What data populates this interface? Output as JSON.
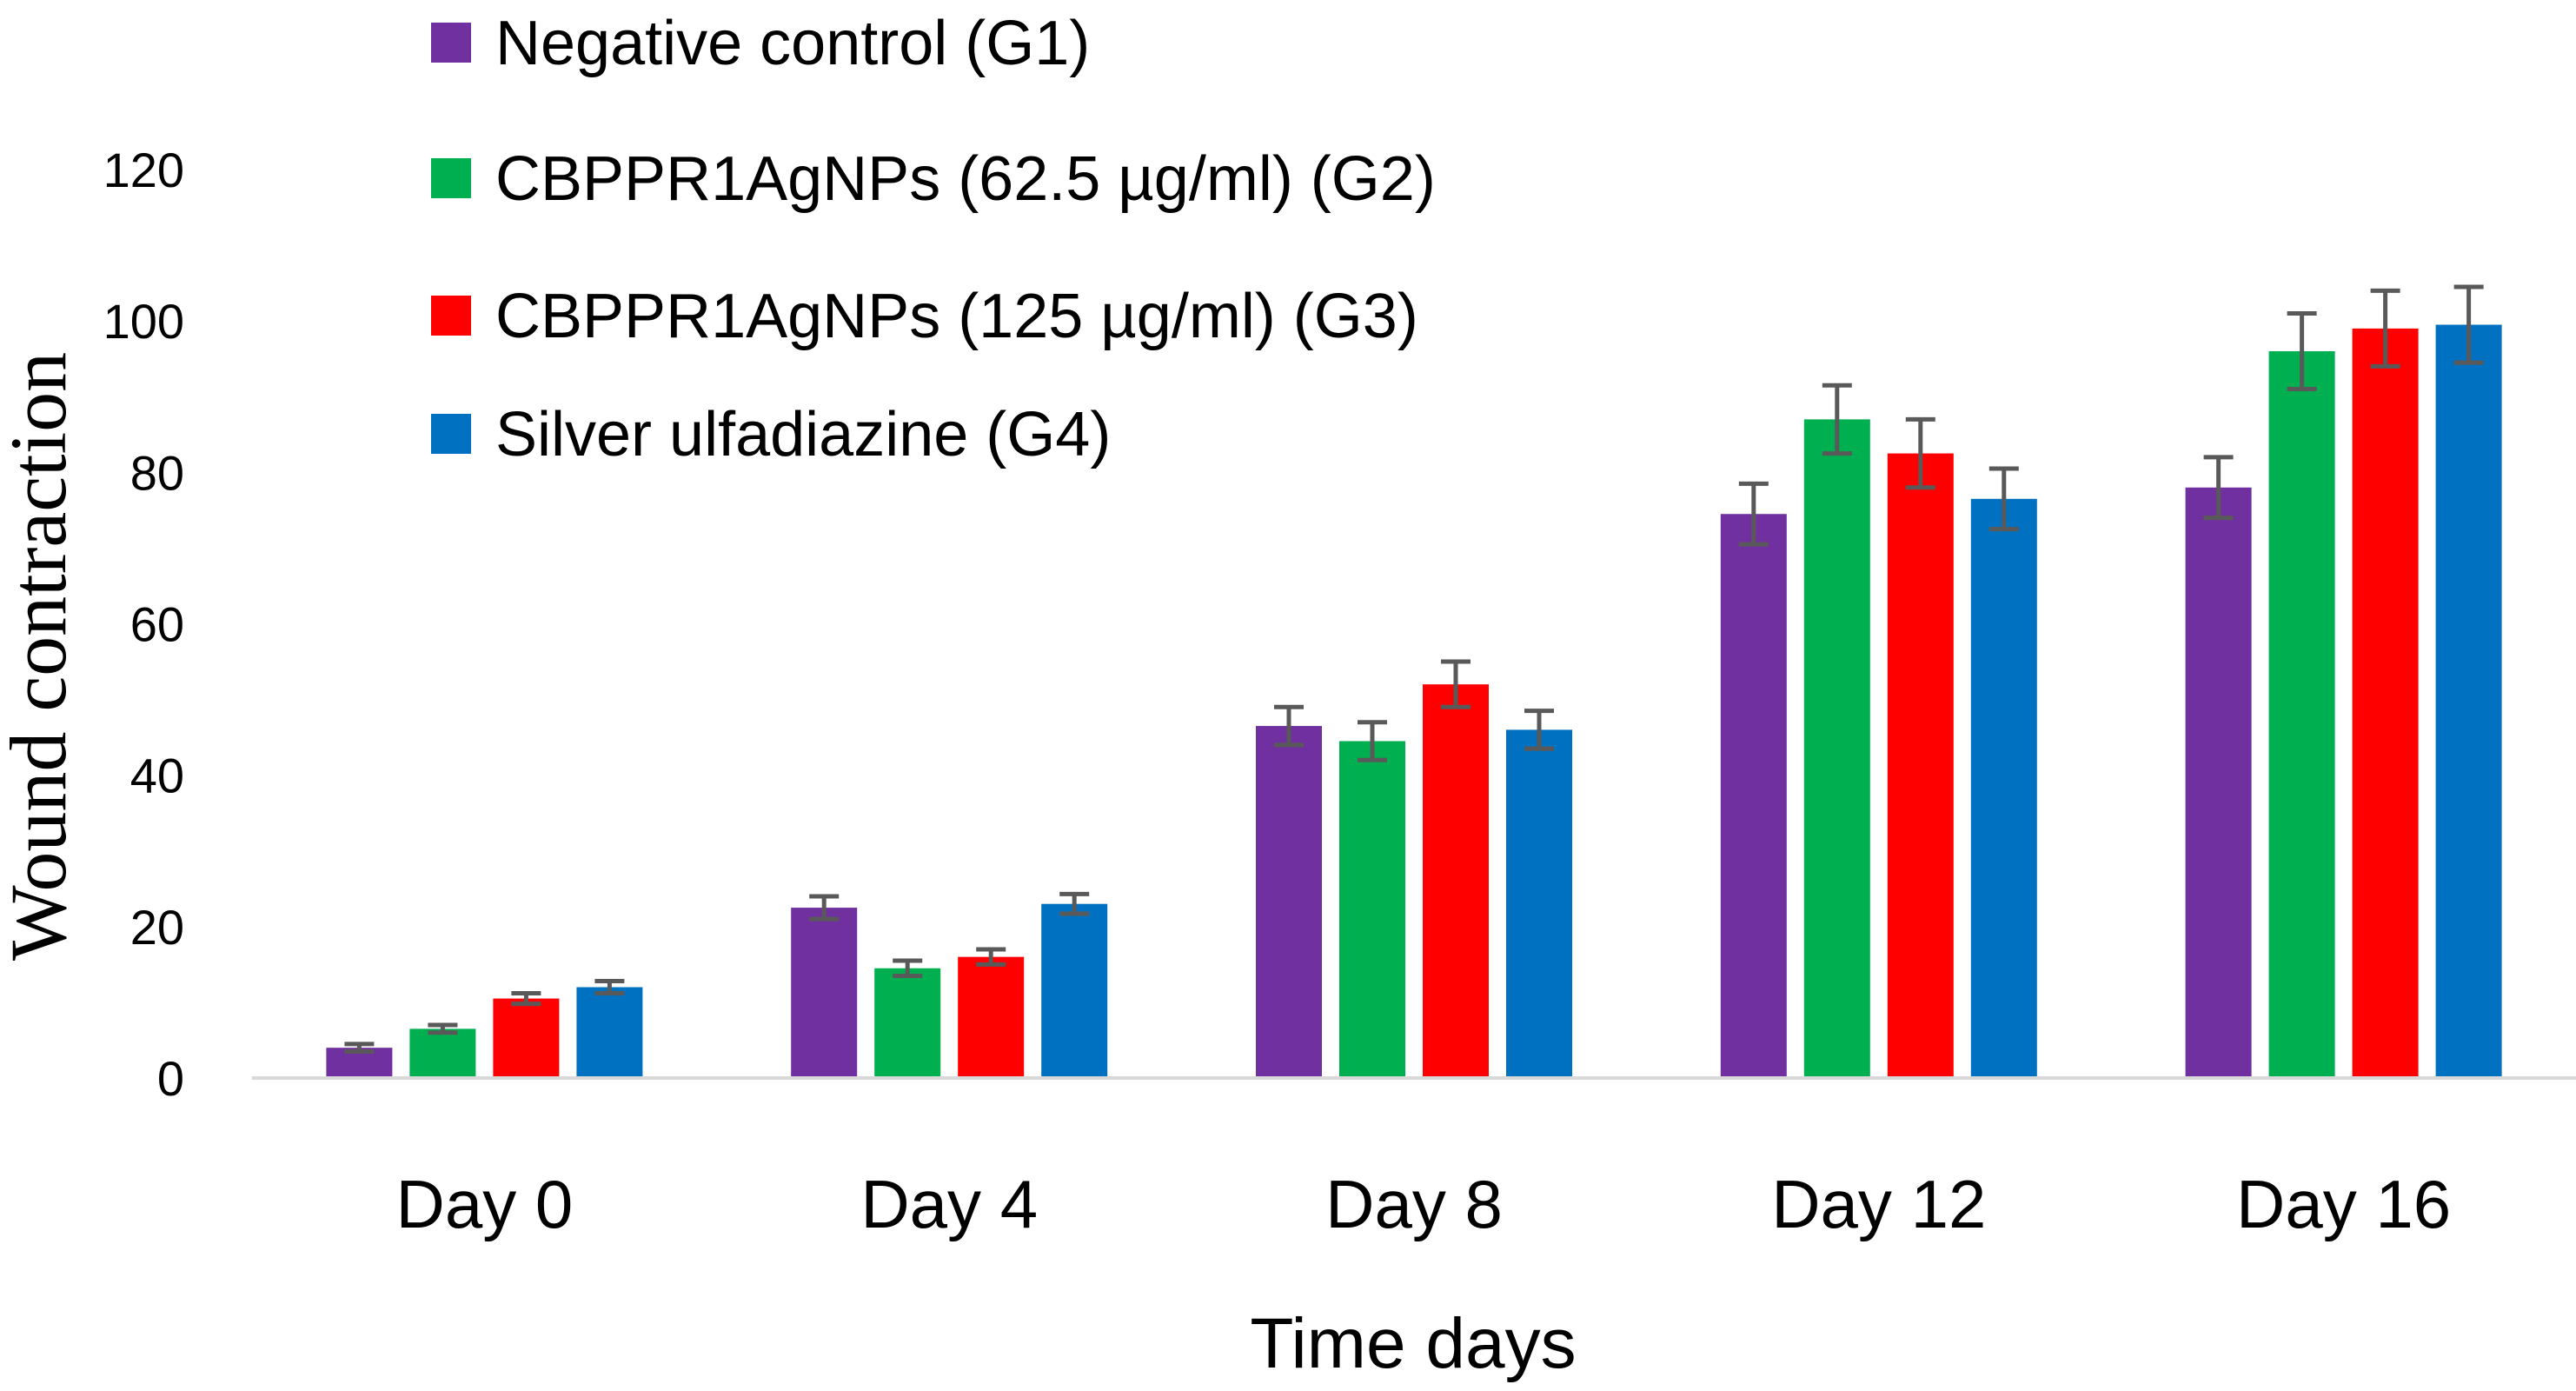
{
  "chart_data": {
    "type": "bar",
    "title": "",
    "xlabel": "Time days",
    "ylabel": "Wound contraction",
    "ylim": [
      0,
      120
    ],
    "yticks": [
      0,
      20,
      40,
      60,
      80,
      100,
      120
    ],
    "grid": false,
    "legend_position": "top-left",
    "categories": [
      "Day 0",
      "Day 4",
      "Day 8",
      "Day 12",
      "Day 16"
    ],
    "series": [
      {
        "name": "Negative control (G1)",
        "color": "#7030A0",
        "values": [
          4,
          22.5,
          46.5,
          74.5,
          78
        ],
        "errors": [
          0.5,
          1.5,
          2.5,
          4,
          4
        ]
      },
      {
        "name": "CBPPR1AgNPs (62.5 µg/ml) (G2)",
        "color": "#00B050",
        "values": [
          6.5,
          14.5,
          44.5,
          87,
          96
        ],
        "errors": [
          0.5,
          1,
          2.5,
          4.5,
          5
        ]
      },
      {
        "name": "CBPPR1AgNPs (125 µg/ml) (G3)",
        "color": "#FF0000",
        "values": [
          10.5,
          16,
          52,
          82.5,
          99
        ],
        "errors": [
          0.7,
          1,
          3,
          4.5,
          5
        ]
      },
      {
        "name": "Silver ulfadiazine (G4)",
        "color": "#0070C0",
        "values": [
          12,
          23,
          46,
          76.5,
          99.5
        ],
        "errors": [
          0.8,
          1.3,
          2.5,
          4,
          5
        ]
      }
    ],
    "colors": {
      "axis": "#D9D9D9",
      "error_bar": "#595959"
    }
  }
}
